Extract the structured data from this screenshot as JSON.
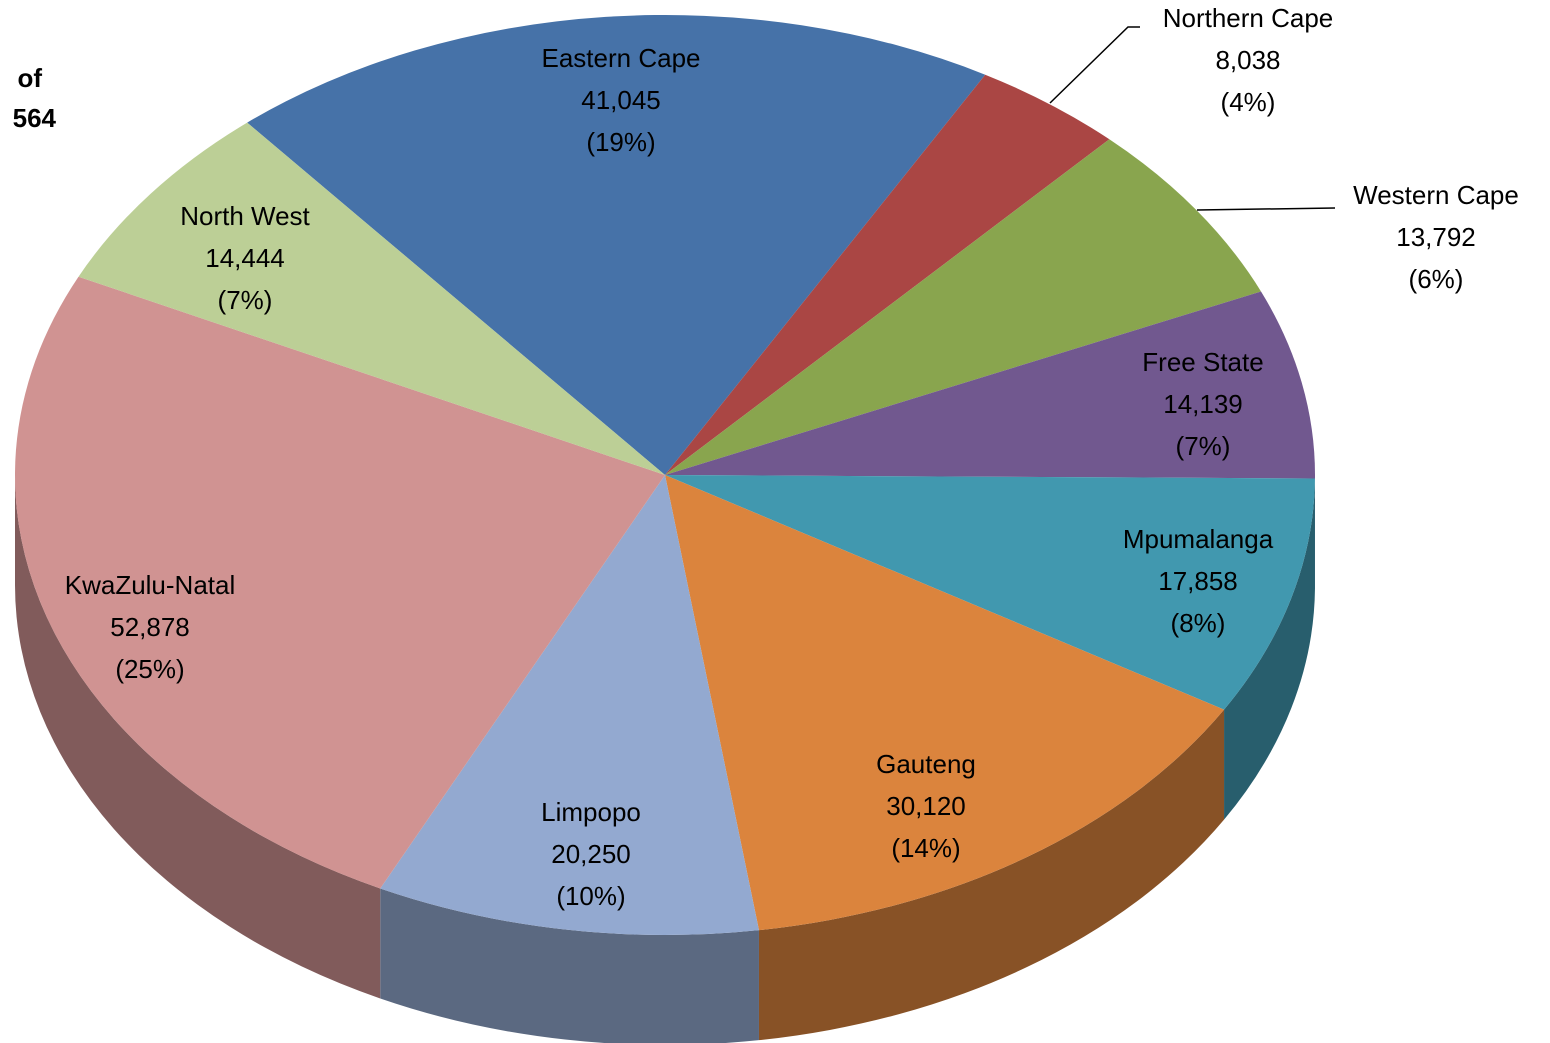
{
  "chart_data": {
    "type": "pie",
    "title_lines": [
      "of",
      "564"
    ],
    "categories": [
      "Eastern Cape",
      "Northern Cape",
      "Western Cape",
      "Free State",
      "Mpumalanga",
      "Gauteng",
      "Limpopo",
      "KwaZulu-Natal",
      "North West"
    ],
    "values": [
      41045,
      8038,
      13792,
      14139,
      17858,
      30120,
      20250,
      52878,
      14444
    ],
    "value_labels": [
      "41,045",
      "8,038",
      "13,792",
      "14,139",
      "17,858",
      "30,120",
      "20,250",
      "52,878",
      "14,444"
    ],
    "percent_labels": [
      "(19%)",
      "(4%)",
      "(6%)",
      "(7%)",
      "(8%)",
      "(14%)",
      "(10%)",
      "(25%)",
      "(7%)"
    ],
    "colors": [
      "#4672a8",
      "#aa4644",
      "#89a54e",
      "#71588f",
      "#4198af",
      "#db843d",
      "#93a9d0",
      "#d09392",
      "#bccf96"
    ],
    "three_d": true
  }
}
